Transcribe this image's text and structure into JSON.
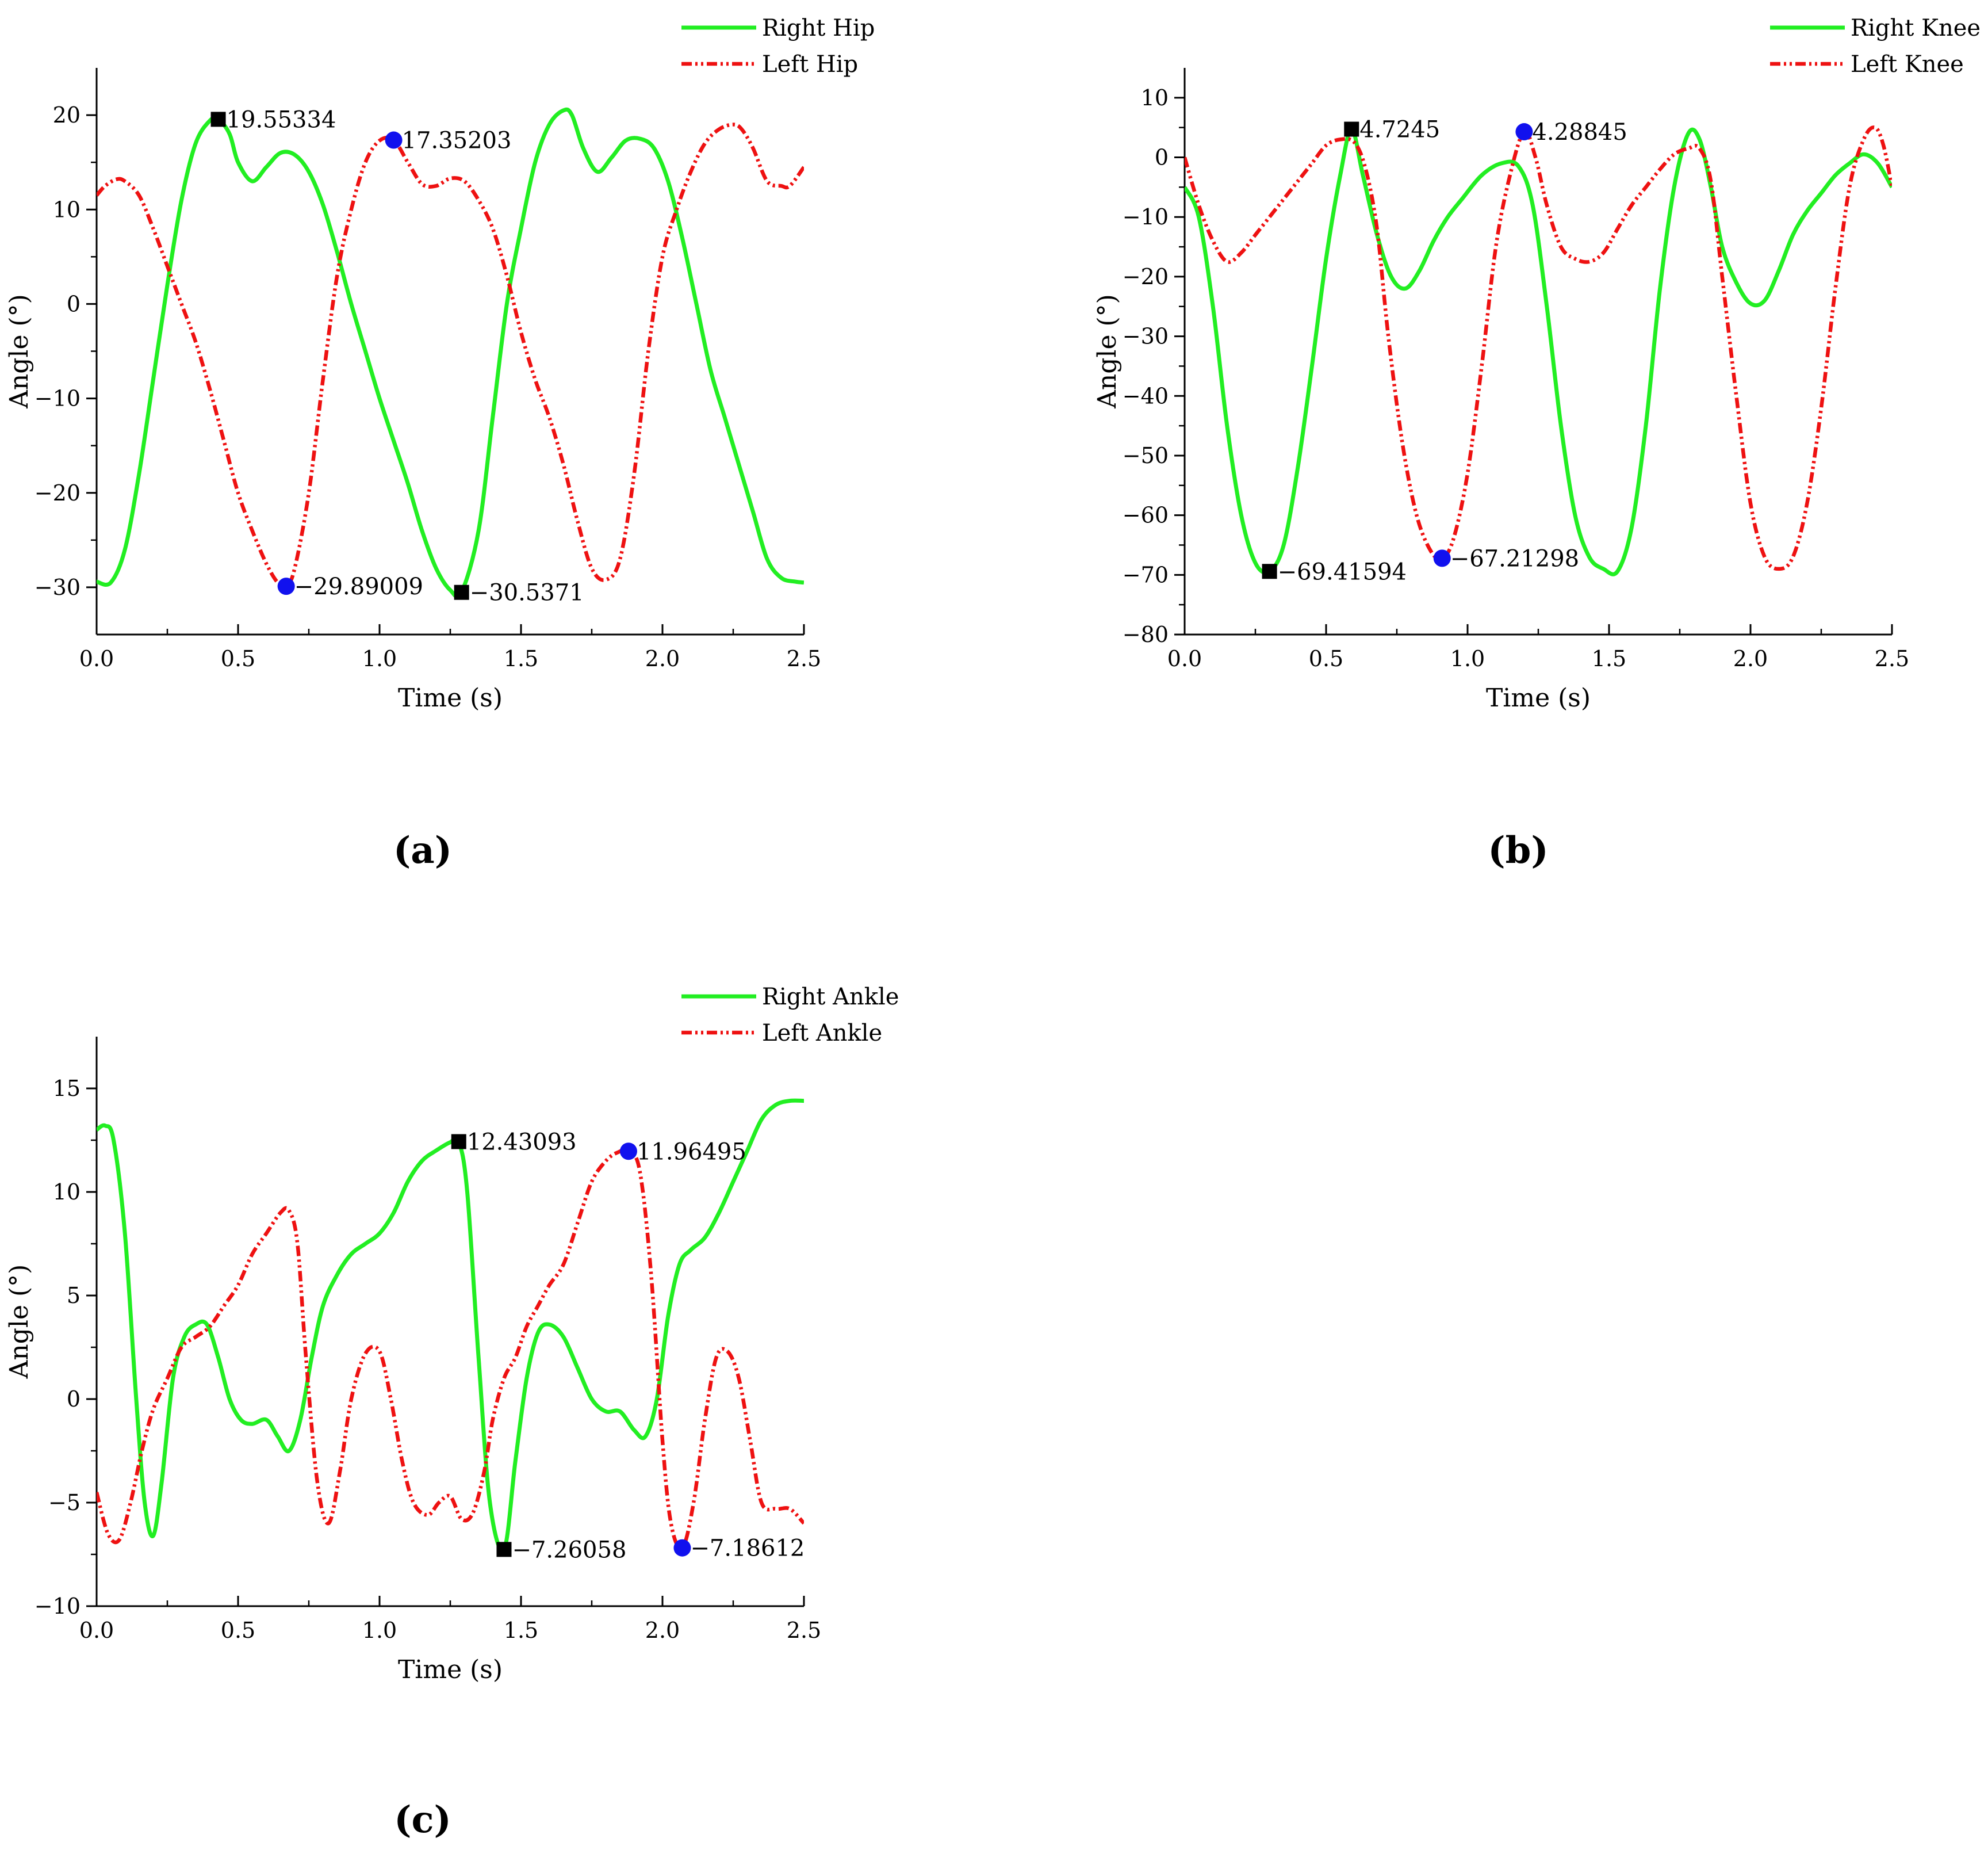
{
  "chart_data": [
    {
      "type": "line",
      "panel_label": "(a)",
      "xlabel": "Time (s)",
      "ylabel": "Angle (°)",
      "xlim": [
        0,
        2.5
      ],
      "ylim": [
        -35,
        25
      ],
      "xticks": [
        0,
        0.5,
        1,
        1.5,
        2,
        2.5
      ],
      "xtick_labels": [
        "0.0",
        "0.5",
        "1.0",
        "1.5",
        "2.0",
        "2.5"
      ],
      "yticks": [
        -30,
        -20,
        -10,
        0,
        10,
        20
      ],
      "ytick_labels": [
        "−30",
        "−20",
        "−10",
        "0",
        "10",
        "20"
      ],
      "legend": [
        "Right Hip",
        "Left Hip"
      ],
      "series": [
        {
          "name": "Right Hip",
          "style": "solid",
          "color": "#22ee22",
          "x": [
            0,
            0.05,
            0.1,
            0.15,
            0.2,
            0.25,
            0.3,
            0.35,
            0.4,
            0.43,
            0.47,
            0.5,
            0.55,
            0.6,
            0.65,
            0.7,
            0.75,
            0.8,
            0.85,
            0.9,
            0.95,
            1.0,
            1.05,
            1.1,
            1.15,
            1.2,
            1.25,
            1.29,
            1.35,
            1.4,
            1.45,
            1.5,
            1.55,
            1.6,
            1.65,
            1.68,
            1.72,
            1.77,
            1.82,
            1.87,
            1.92,
            1.97,
            2.02,
            2.07,
            2.12,
            2.17,
            2.22,
            2.27,
            2.32,
            2.37,
            2.42,
            2.47,
            2.5
          ],
          "y": [
            -29.4,
            -29.5,
            -26,
            -18,
            -8,
            2,
            11,
            17,
            19.4,
            19.55,
            18,
            15,
            13,
            14.5,
            16,
            15.8,
            14,
            10.5,
            5.5,
            0,
            -5,
            -10,
            -14.5,
            -19,
            -24,
            -28,
            -30.3,
            -30.5,
            -24,
            -12,
            0,
            8,
            15,
            19,
            20.5,
            20,
            16.5,
            14,
            15.5,
            17.3,
            17.5,
            16.5,
            13,
            7,
            0,
            -7,
            -12,
            -17,
            -22,
            -27,
            -29,
            -29.4,
            -29.5
          ]
        },
        {
          "name": "Left Hip",
          "style": "dashdot",
          "color": "#ee1111",
          "x": [
            0,
            0.03,
            0.07,
            0.1,
            0.15,
            0.2,
            0.25,
            0.3,
            0.35,
            0.4,
            0.45,
            0.5,
            0.55,
            0.6,
            0.64,
            0.67,
            0.7,
            0.75,
            0.8,
            0.85,
            0.9,
            0.95,
            1.0,
            1.05,
            1.1,
            1.15,
            1.2,
            1.25,
            1.3,
            1.35,
            1.4,
            1.45,
            1.5,
            1.55,
            1.6,
            1.65,
            1.7,
            1.75,
            1.8,
            1.85,
            1.9,
            1.95,
            2.0,
            2.05,
            2.1,
            2.15,
            2.2,
            2.25,
            2.28,
            2.32,
            2.37,
            2.42,
            2.45,
            2.5
          ],
          "y": [
            11.5,
            12.5,
            13.2,
            13,
            11.5,
            8,
            4,
            0,
            -4,
            -9,
            -14.5,
            -20,
            -24,
            -27.5,
            -29.5,
            -29.89,
            -28,
            -20,
            -8,
            3,
            10,
            15,
            17.3,
            17.35,
            15,
            12.7,
            12.5,
            13.3,
            13,
            11,
            8,
            3,
            -3,
            -8,
            -12,
            -17,
            -23,
            -28,
            -29.2,
            -27,
            -18,
            -5,
            5,
            10,
            14,
            17,
            18.5,
            19,
            18.5,
            16.5,
            13,
            12.5,
            12.5,
            14.5
          ]
        }
      ],
      "annotations": [
        {
          "x": 0.43,
          "y": 19.55334,
          "text": "19.55334",
          "marker": "square",
          "color": "#000000"
        },
        {
          "x": 0.67,
          "y": -29.89009,
          "text": "−29.89009",
          "marker": "circle",
          "color": "#1111ee"
        },
        {
          "x": 1.05,
          "y": 17.35203,
          "text": "17.35203",
          "marker": "circle",
          "color": "#1111ee"
        },
        {
          "x": 1.29,
          "y": -30.5371,
          "text": "−30.5371",
          "marker": "square",
          "color": "#000000"
        }
      ]
    },
    {
      "type": "line",
      "panel_label": "(b)",
      "xlabel": "Time (s)",
      "ylabel": "Angle (°)",
      "xlim": [
        0,
        2.5
      ],
      "ylim": [
        -80,
        15
      ],
      "xticks": [
        0,
        0.5,
        1,
        1.5,
        2,
        2.5
      ],
      "xtick_labels": [
        "0.0",
        "0.5",
        "1.0",
        "1.5",
        "2.0",
        "2.5"
      ],
      "yticks": [
        -80,
        -70,
        -60,
        -50,
        -40,
        -30,
        -20,
        -10,
        0,
        10
      ],
      "ytick_labels": [
        "−80",
        "−70",
        "−60",
        "−50",
        "−40",
        "−30",
        "−20",
        "−10",
        "0",
        "10"
      ],
      "legend": [
        "Right Knee",
        "Left Knee"
      ],
      "series": [
        {
          "name": "Right Knee",
          "style": "solid",
          "color": "#22ee22",
          "x": [
            0,
            0.05,
            0.1,
            0.15,
            0.2,
            0.25,
            0.3,
            0.35,
            0.4,
            0.45,
            0.5,
            0.55,
            0.59,
            0.63,
            0.68,
            0.73,
            0.78,
            0.83,
            0.88,
            0.93,
            0.98,
            1.05,
            1.12,
            1.18,
            1.23,
            1.28,
            1.33,
            1.38,
            1.43,
            1.48,
            1.53,
            1.58,
            1.63,
            1.68,
            1.73,
            1.78,
            1.82,
            1.86,
            1.9,
            1.95,
            2.0,
            2.05,
            2.1,
            2.15,
            2.2,
            2.25,
            2.3,
            2.35,
            2.4,
            2.45,
            2.5
          ],
          "y": [
            -5,
            -10,
            -25,
            -45,
            -60,
            -68,
            -69.4,
            -65,
            -52,
            -35,
            -17,
            -3,
            4.7,
            -3,
            -13,
            -20,
            -22,
            -19,
            -14,
            -10,
            -7,
            -3,
            -1,
            -1.5,
            -8,
            -25,
            -45,
            -60,
            -67,
            -69,
            -69.4,
            -62,
            -45,
            -22,
            -5,
            4,
            3,
            -5,
            -15,
            -21,
            -24.5,
            -24,
            -19,
            -13,
            -9,
            -6,
            -3,
            -1,
            0.5,
            -1,
            -5
          ]
        },
        {
          "name": "Left Knee",
          "style": "dashdot",
          "color": "#ee1111",
          "x": [
            0,
            0.05,
            0.1,
            0.15,
            0.2,
            0.25,
            0.3,
            0.35,
            0.4,
            0.45,
            0.5,
            0.55,
            0.6,
            0.64,
            0.68,
            0.72,
            0.77,
            0.82,
            0.87,
            0.91,
            0.95,
            1.0,
            1.05,
            1.1,
            1.15,
            1.2,
            1.24,
            1.28,
            1.33,
            1.38,
            1.43,
            1.48,
            1.53,
            1.58,
            1.63,
            1.68,
            1.73,
            1.78,
            1.82,
            1.86,
            1.9,
            1.95,
            2.0,
            2.05,
            2.1,
            2.15,
            2.2,
            2.25,
            2.3,
            2.35,
            2.4,
            2.44,
            2.47,
            2.5
          ],
          "y": [
            0,
            -8,
            -14,
            -17.5,
            -16,
            -13,
            -10,
            -7,
            -4,
            -1,
            2,
            3,
            2.5,
            -2,
            -12,
            -30,
            -48,
            -60,
            -66,
            -67.2,
            -64,
            -53,
            -35,
            -15,
            -3,
            4.3,
            0,
            -8,
            -15,
            -17,
            -17.5,
            -16,
            -12,
            -8,
            -5,
            -2,
            0.5,
            1.5,
            1.5,
            -4,
            -20,
            -40,
            -58,
            -67,
            -69,
            -67,
            -58,
            -42,
            -22,
            -5,
            3,
            5,
            2,
            -5
          ]
        }
      ],
      "annotations": [
        {
          "x": 0.3,
          "y": -69.41594,
          "text": "−69.41594",
          "marker": "square",
          "color": "#000000"
        },
        {
          "x": 0.59,
          "y": 4.7245,
          "text": "4.7245",
          "marker": "square",
          "color": "#000000"
        },
        {
          "x": 0.91,
          "y": -67.21298,
          "text": "−67.21298",
          "marker": "circle",
          "color": "#1111ee"
        },
        {
          "x": 1.2,
          "y": 4.28845,
          "text": "4.28845",
          "marker": "circle",
          "color": "#1111ee"
        }
      ]
    },
    {
      "type": "line",
      "panel_label": "(c)",
      "xlabel": "Time (s)",
      "ylabel": "Angle (°)",
      "xlim": [
        0,
        2.5
      ],
      "ylim": [
        -10,
        17.5
      ],
      "xticks": [
        0,
        0.5,
        1,
        1.5,
        2,
        2.5
      ],
      "xtick_labels": [
        "0.0",
        "0.5",
        "1.0",
        "1.5",
        "2.0",
        "2.5"
      ],
      "yticks": [
        -10,
        -5,
        0,
        5,
        10,
        15
      ],
      "ytick_labels": [
        "−10",
        "−5",
        "0",
        "5",
        "10",
        "15"
      ],
      "legend": [
        "Right Ankle",
        "Left Ankle"
      ],
      "series": [
        {
          "name": "Right Ankle",
          "style": "solid",
          "color": "#22ee22",
          "x": [
            0,
            0.03,
            0.06,
            0.1,
            0.14,
            0.17,
            0.2,
            0.23,
            0.27,
            0.31,
            0.35,
            0.39,
            0.43,
            0.47,
            0.51,
            0.55,
            0.6,
            0.64,
            0.68,
            0.72,
            0.76,
            0.8,
            0.85,
            0.9,
            0.95,
            1.0,
            1.05,
            1.1,
            1.15,
            1.2,
            1.25,
            1.28,
            1.31,
            1.35,
            1.39,
            1.44,
            1.48,
            1.52,
            1.56,
            1.6,
            1.65,
            1.7,
            1.75,
            1.8,
            1.85,
            1.9,
            1.94,
            1.98,
            2.02,
            2.06,
            2.1,
            2.15,
            2.2,
            2.25,
            2.3,
            2.35,
            2.4,
            2.45,
            2.5
          ],
          "y": [
            13,
            13.2,
            12.5,
            8,
            0,
            -5,
            -6.6,
            -4,
            1,
            3,
            3.6,
            3.6,
            2,
            0,
            -1,
            -1.2,
            -1,
            -1.8,
            -2.5,
            -1,
            2,
            4.5,
            6,
            7,
            7.5,
            8,
            9,
            10.5,
            11.5,
            12,
            12.4,
            12.43,
            10,
            2,
            -5,
            -7.26,
            -3,
            1,
            3.2,
            3.6,
            3,
            1.5,
            0,
            -0.6,
            -0.6,
            -1.5,
            -1.8,
            0,
            4,
            6.5,
            7.2,
            7.8,
            9,
            10.5,
            12,
            13.5,
            14.2,
            14.4,
            14.4
          ]
        },
        {
          "name": "Left Ankle",
          "style": "dashdot",
          "color": "#ee1111",
          "x": [
            0,
            0.04,
            0.08,
            0.12,
            0.16,
            0.2,
            0.25,
            0.3,
            0.35,
            0.4,
            0.45,
            0.5,
            0.55,
            0.6,
            0.65,
            0.68,
            0.71,
            0.74,
            0.78,
            0.82,
            0.86,
            0.9,
            0.95,
            1.0,
            1.04,
            1.08,
            1.12,
            1.17,
            1.21,
            1.25,
            1.29,
            1.33,
            1.37,
            1.4,
            1.44,
            1.48,
            1.52,
            1.56,
            1.6,
            1.65,
            1.7,
            1.75,
            1.8,
            1.84,
            1.88,
            1.92,
            1.96,
            2.0,
            2.03,
            2.07,
            2.11,
            2.15,
            2.19,
            2.23,
            2.27,
            2.31,
            2.35,
            2.4,
            2.45,
            2.5
          ],
          "y": [
            -4.5,
            -6.5,
            -6.8,
            -5,
            -2.5,
            -0.5,
            1,
            2.5,
            3,
            3.5,
            4.5,
            5.5,
            7,
            8,
            9,
            9.1,
            7.5,
            2,
            -4,
            -6,
            -3.5,
            0,
            2.2,
            2.3,
            0,
            -3,
            -5,
            -5.6,
            -5,
            -4.7,
            -5.8,
            -5.5,
            -3.5,
            -1,
            1,
            2,
            3.5,
            4.5,
            5.5,
            6.5,
            8.5,
            10.5,
            11.5,
            11.9,
            11.96,
            11,
            6,
            -2,
            -6,
            -7.19,
            -5,
            -1,
            2,
            2.3,
            1,
            -2,
            -5,
            -5.3,
            -5.3,
            -6
          ]
        }
      ],
      "annotations": [
        {
          "x": 1.28,
          "y": 12.43093,
          "text": "12.43093",
          "marker": "square",
          "color": "#000000"
        },
        {
          "x": 1.44,
          "y": -7.26058,
          "text": "−7.26058",
          "marker": "square",
          "color": "#000000"
        },
        {
          "x": 1.88,
          "y": 11.96495,
          "text": "11.96495",
          "marker": "circle",
          "color": "#1111ee"
        },
        {
          "x": 2.07,
          "y": -7.18612,
          "text": "−7.18612",
          "marker": "circle",
          "color": "#1111ee"
        }
      ]
    }
  ]
}
